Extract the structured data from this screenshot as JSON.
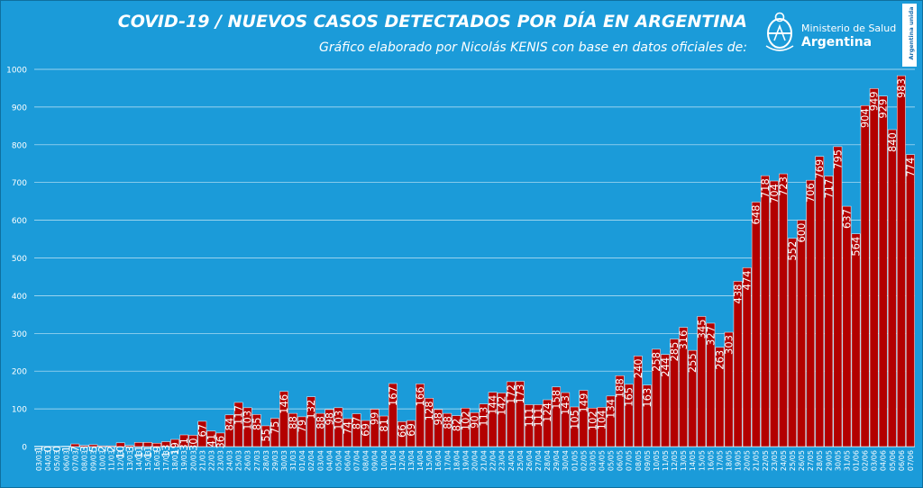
{
  "header": {
    "title": "COVID-19  /  NUEVOS CASOS DETECTADOS POR DÍA EN ARGENTINA",
    "subtitle": "Gráfico elaborado por Nicolás KENIS con base en datos oficiales de:",
    "logo_line1": "Ministerio de Salud",
    "logo_line2": "Argentina",
    "badge_text": "Argentina unida"
  },
  "colors": {
    "background": "#1b9bd9",
    "bar": "#b30000",
    "bar_edge": "#ffffff",
    "text": "#ffffff"
  },
  "chart_data": {
    "type": "bar",
    "title": "COVID-19  /  NUEVOS CASOS DETECTADOS POR DÍA EN ARGENTINA",
    "xlabel": "",
    "ylabel": "",
    "ylim": [
      0,
      1000
    ],
    "yticks": [
      "0",
      "100",
      "200",
      "300",
      "400",
      "500",
      "600",
      "700",
      "800",
      "900",
      "1000"
    ],
    "grid": true,
    "data_labels": true,
    "categories": [
      "03/03",
      "04/03",
      "05/03",
      "06/03",
      "07/03",
      "08/03",
      "09/03",
      "10/03",
      "11/03",
      "12/03",
      "13/03",
      "14/03",
      "15/03",
      "16/03",
      "17/03",
      "18/03",
      "19/03",
      "20/03",
      "21/03",
      "22/03",
      "23/03",
      "24/03",
      "25/03",
      "26/03",
      "27/03",
      "28/03",
      "29/03",
      "30/03",
      "31/03",
      "01/04",
      "02/04",
      "03/04",
      "04/04",
      "05/04",
      "06/04",
      "07/04",
      "08/04",
      "09/04",
      "10/04",
      "11/04",
      "12/04",
      "13/04",
      "14/04",
      "15/04",
      "16/04",
      "17/04",
      "18/04",
      "19/04",
      "20/04",
      "21/04",
      "22/04",
      "23/04",
      "24/04",
      "25/04",
      "26/04",
      "27/04",
      "28/04",
      "29/04",
      "30/04",
      "01/05",
      "02/05",
      "03/05",
      "04/05",
      "05/05",
      "06/05",
      "07/05",
      "08/05",
      "09/05",
      "10/05",
      "11/05",
      "12/05",
      "13/05",
      "14/05",
      "15/05",
      "16/05",
      "17/05",
      "18/05",
      "19/05",
      "20/05",
      "21/05",
      "22/05",
      "23/05",
      "24/05",
      "25/05",
      "26/05",
      "27/05",
      "28/05",
      "29/05",
      "30/05",
      "31/05",
      "01/06",
      "02/06",
      "03/06",
      "04/06",
      "05/06",
      "06/06",
      "07/06"
    ],
    "values": [
      1,
      0,
      0,
      1,
      7,
      3,
      5,
      2,
      2,
      10,
      3,
      11,
      11,
      9,
      13,
      19,
      31,
      30,
      67,
      41,
      36,
      84,
      117,
      103,
      85,
      55,
      75,
      146,
      88,
      79,
      132,
      88,
      98,
      103,
      74,
      87,
      69,
      99,
      81,
      167,
      66,
      69,
      166,
      128,
      98,
      88,
      82,
      102,
      90,
      113,
      144,
      142,
      172,
      173,
      111,
      111,
      124,
      158,
      143,
      105,
      149,
      102,
      104,
      134,
      188,
      165,
      240,
      163,
      258,
      244,
      285,
      316,
      255,
      345,
      327,
      263,
      303,
      438,
      474,
      648,
      718,
      704,
      723,
      552,
      600,
      706,
      769,
      717,
      795,
      637,
      564,
      904,
      949,
      929,
      840,
      983,
      774
    ]
  }
}
